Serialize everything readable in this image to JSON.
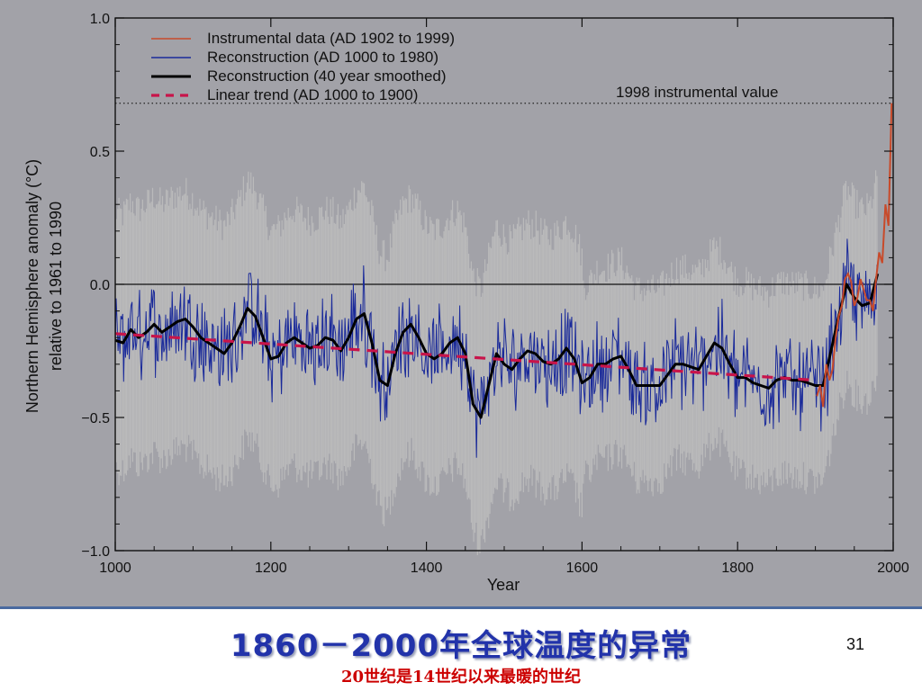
{
  "slide": {
    "title": "1860－2000年全球温度的异常",
    "subtitle": "20世纪是14世纪以来最暖的世纪",
    "page_number": "31"
  },
  "colors": {
    "panel_background": "#a2a2a8",
    "instrumental": "#c84a2a",
    "reconstruction": "#1a2a9a",
    "smoothed": "#000000",
    "linear_trend": "#c8144a",
    "uncertainty_band": "#bcbcbc",
    "title": "#2233aa",
    "subtitle": "#cc0000"
  },
  "chart_data": {
    "type": "line",
    "title": "",
    "xlabel": "Year",
    "ylabel": "Northern Hemisphere anomaly (°C) relative to 1961 to 1990",
    "ylabel_lines": [
      "Northern Hemisphere anomaly (°C)",
      "relative to 1961 to 1990"
    ],
    "xlim": [
      1000,
      2000
    ],
    "ylim": [
      -1.0,
      1.0
    ],
    "x_ticks": [
      1000,
      1200,
      1400,
      1600,
      1800,
      2000
    ],
    "x_tick_labels": [
      "1000",
      "1200",
      "1400",
      "1600",
      "1800",
      "2000"
    ],
    "y_ticks": [
      1.0,
      0.5,
      0.0,
      -0.5,
      -1.0
    ],
    "y_tick_labels": [
      "1.0",
      "0.5",
      "0.0",
      "−0.5",
      "−1.0"
    ],
    "zero_line": 0.0,
    "reference_line": {
      "label": "1998 instrumental value",
      "y": 0.68
    },
    "legend": {
      "placement": "top-left",
      "entries": [
        "Instrumental data (AD 1902 to 1999)",
        "Reconstruction (AD 1000 to 1980)",
        "Reconstruction (40 year smoothed)",
        "Linear trend (AD 1000 to 1900)"
      ]
    },
    "series": [
      {
        "key": "smoothed",
        "x": [
          1000,
          1010,
          1020,
          1030,
          1040,
          1050,
          1060,
          1070,
          1080,
          1090,
          1100,
          1110,
          1120,
          1130,
          1140,
          1150,
          1160,
          1170,
          1180,
          1190,
          1200,
          1210,
          1220,
          1230,
          1240,
          1250,
          1260,
          1270,
          1280,
          1290,
          1300,
          1310,
          1320,
          1330,
          1340,
          1350,
          1360,
          1370,
          1380,
          1390,
          1400,
          1410,
          1420,
          1430,
          1440,
          1450,
          1460,
          1470,
          1480,
          1490,
          1500,
          1510,
          1520,
          1530,
          1540,
          1550,
          1560,
          1570,
          1580,
          1590,
          1600,
          1610,
          1620,
          1630,
          1640,
          1650,
          1660,
          1670,
          1680,
          1690,
          1700,
          1710,
          1720,
          1730,
          1740,
          1750,
          1760,
          1770,
          1780,
          1790,
          1800,
          1810,
          1820,
          1830,
          1840,
          1850,
          1860,
          1870,
          1880,
          1890,
          1900,
          1910,
          1920,
          1930,
          1940,
          1950,
          1960,
          1970,
          1980
        ],
        "y": [
          -0.21,
          -0.22,
          -0.17,
          -0.2,
          -0.18,
          -0.15,
          -0.18,
          -0.16,
          -0.14,
          -0.13,
          -0.16,
          -0.2,
          -0.22,
          -0.24,
          -0.26,
          -0.22,
          -0.16,
          -0.09,
          -0.12,
          -0.2,
          -0.28,
          -0.27,
          -0.22,
          -0.2,
          -0.22,
          -0.24,
          -0.23,
          -0.2,
          -0.21,
          -0.25,
          -0.2,
          -0.13,
          -0.11,
          -0.22,
          -0.36,
          -0.38,
          -0.26,
          -0.18,
          -0.15,
          -0.2,
          -0.26,
          -0.28,
          -0.26,
          -0.22,
          -0.2,
          -0.26,
          -0.45,
          -0.5,
          -0.38,
          -0.26,
          -0.3,
          -0.32,
          -0.28,
          -0.25,
          -0.26,
          -0.29,
          -0.3,
          -0.28,
          -0.24,
          -0.28,
          -0.37,
          -0.35,
          -0.3,
          -0.3,
          -0.28,
          -0.27,
          -0.32,
          -0.38,
          -0.38,
          -0.38,
          -0.38,
          -0.34,
          -0.3,
          -0.3,
          -0.31,
          -0.32,
          -0.27,
          -0.22,
          -0.24,
          -0.3,
          -0.35,
          -0.35,
          -0.37,
          -0.38,
          -0.39,
          -0.36,
          -0.35,
          -0.36,
          -0.36,
          -0.37,
          -0.38,
          -0.38,
          -0.25,
          -0.12,
          0.0,
          -0.05,
          -0.08,
          -0.07,
          0.04
        ]
      },
      {
        "key": "linear_trend",
        "x": [
          1000,
          1900
        ],
        "y": [
          -0.185,
          -0.36
        ]
      },
      {
        "key": "instrumental",
        "x": [
          1902,
          1906,
          1910,
          1914,
          1918,
          1922,
          1926,
          1930,
          1934,
          1938,
          1942,
          1946,
          1950,
          1954,
          1958,
          1962,
          1966,
          1970,
          1974,
          1978,
          1982,
          1986,
          1990,
          1994,
          1998
        ],
        "y": [
          -0.42,
          -0.38,
          -0.46,
          -0.3,
          -0.36,
          -0.32,
          -0.2,
          -0.12,
          -0.08,
          0.02,
          0.04,
          0.01,
          -0.08,
          -0.05,
          0.02,
          -0.02,
          -0.06,
          -0.06,
          -0.1,
          0.02,
          0.12,
          0.08,
          0.3,
          0.22,
          0.68
        ]
      }
    ]
  }
}
